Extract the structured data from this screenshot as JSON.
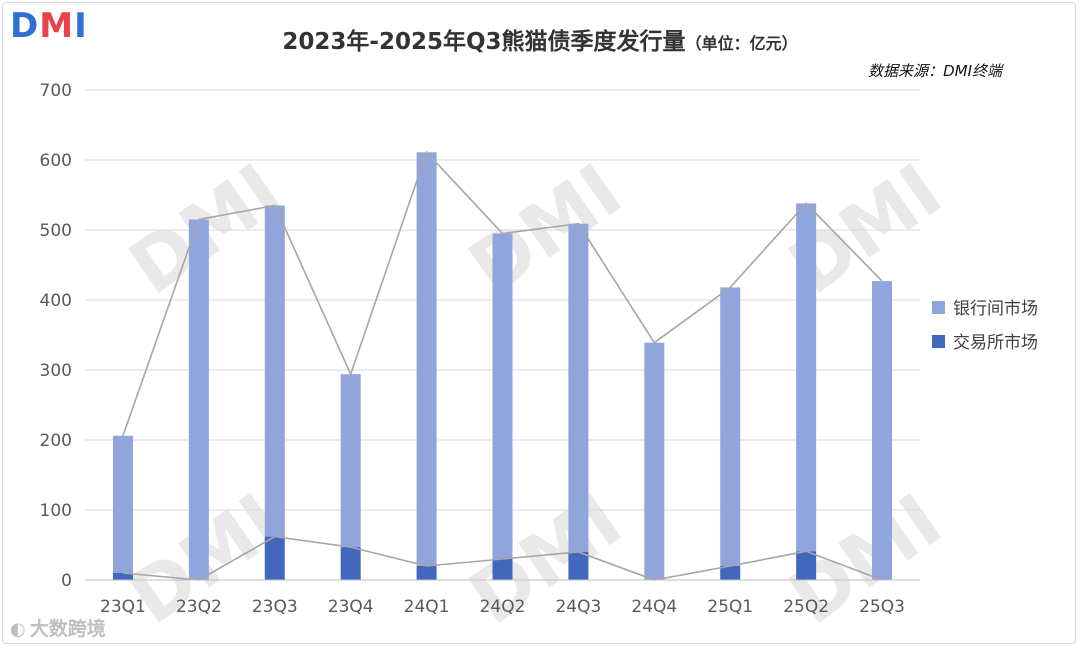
{
  "header": {
    "logo_text": "DMI",
    "logo_colors": {
      "d": "#2f6fd6",
      "m": "#e8434a",
      "i": "#2f6fd6"
    },
    "title": "2023年-2025年Q3熊猫债季度发行量",
    "unit": "（单位：亿元）",
    "source": "数据来源：DMI终端"
  },
  "footer": {
    "brand": "大数跨境",
    "brand_icon": "brand-mark-icon"
  },
  "watermark_text": "DMI",
  "colors": {
    "interbank": "#8fa5dc",
    "exchange": "#4168bd",
    "line": "#a6a6a6",
    "grid": "#d9d9d9"
  },
  "chart_data": {
    "type": "bar",
    "stacked": true,
    "categories": [
      "23Q1",
      "23Q2",
      "23Q3",
      "23Q4",
      "24Q1",
      "24Q2",
      "24Q3",
      "24Q4",
      "25Q1",
      "25Q2",
      "25Q3"
    ],
    "series": [
      {
        "name": "交易所市场",
        "values": [
          10,
          0,
          62,
          47,
          20,
          30,
          40,
          0,
          20,
          41,
          0
        ]
      },
      {
        "name": "银行间市场",
        "values": [
          196,
          515,
          473,
          247,
          591,
          465,
          469,
          339,
          398,
          497,
          427
        ]
      }
    ],
    "line_overlays": [
      "total",
      "交易所市场"
    ],
    "ylim": [
      0,
      700
    ],
    "yticks": [
      "0",
      "100",
      "200",
      "300",
      "400",
      "500",
      "600",
      "700"
    ],
    "grid": true,
    "legend_position": "right"
  }
}
